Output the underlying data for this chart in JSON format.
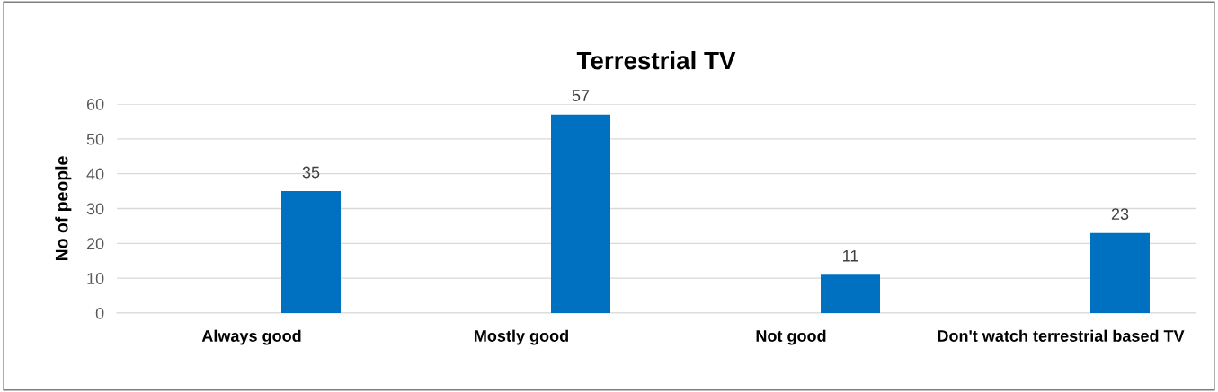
{
  "chart_data": {
    "type": "bar",
    "title": "Terrestrial TV",
    "ylabel": "No of people",
    "categories": [
      "Always good",
      "Mostly good",
      "Not good",
      "Don't watch terrestrial based TV"
    ],
    "values": [
      35,
      57,
      11,
      23
    ],
    "color": "#0070c0",
    "ylim": [
      0,
      60
    ],
    "yticks": [
      0,
      10,
      20,
      30,
      40,
      50,
      60
    ],
    "grid": "y",
    "data_labels": true
  }
}
